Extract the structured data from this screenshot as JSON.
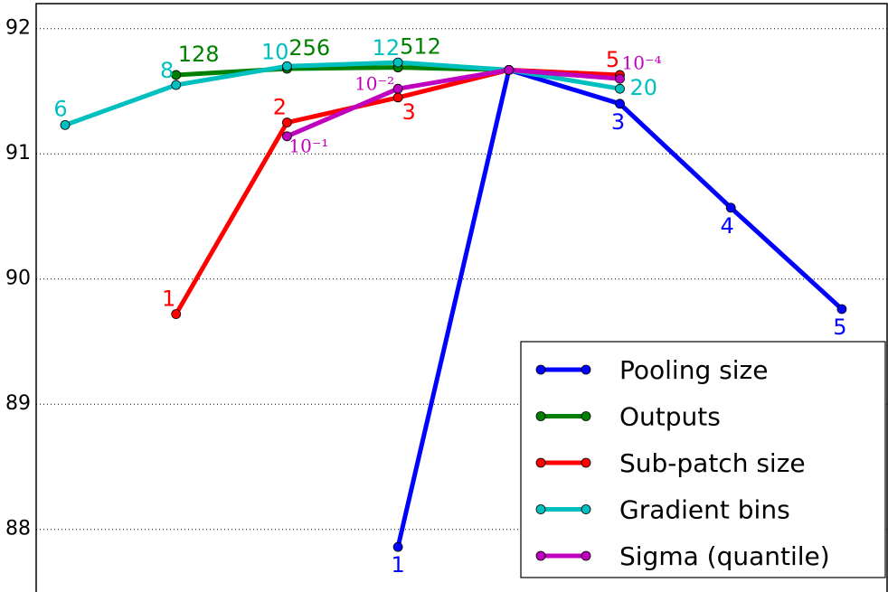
{
  "chart_data": {
    "type": "line",
    "categories": [
      null,
      null,
      null,
      null,
      null,
      null,
      null,
      null
    ],
    "ylim": [
      87.5,
      92.2
    ],
    "yticks": [
      88,
      89,
      90,
      91,
      92
    ],
    "grid": true,
    "legend": "lower right",
    "series": [
      {
        "name": "Pooling size",
        "color": "#0000ff",
        "values": [
          null,
          null,
          null,
          87.86,
          91.67,
          91.4,
          90.57,
          89.76
        ],
        "point_labels": [
          null,
          null,
          null,
          "1",
          null,
          "3",
          "4",
          "5"
        ]
      },
      {
        "name": "Outputs",
        "color": "#008000",
        "values": [
          null,
          91.63,
          91.68,
          91.69,
          91.67,
          null,
          null,
          null
        ],
        "point_labels": [
          null,
          "128",
          "256",
          "512",
          null,
          null,
          null,
          null
        ]
      },
      {
        "name": "Sub-patch size",
        "color": "#ff0000",
        "values": [
          null,
          89.72,
          91.25,
          91.45,
          91.67,
          91.63,
          null,
          null
        ],
        "point_labels": [
          null,
          "1",
          "2",
          "3",
          null,
          "5",
          null,
          null
        ]
      },
      {
        "name": "Gradient bins",
        "color": "#00bfbf",
        "values": [
          91.23,
          91.55,
          91.7,
          91.73,
          91.67,
          91.52,
          null,
          null
        ],
        "point_labels": [
          "6",
          "8",
          "10",
          "12",
          null,
          "20",
          null,
          null
        ]
      },
      {
        "name": "Sigma (quantile)",
        "color": "#bf00bf",
        "values": [
          null,
          null,
          91.14,
          91.52,
          91.67,
          91.6,
          null,
          null
        ],
        "point_labels": [
          null,
          null,
          "10⁻¹",
          "10⁻²",
          null,
          "10⁻⁴",
          null,
          null
        ]
      }
    ]
  }
}
